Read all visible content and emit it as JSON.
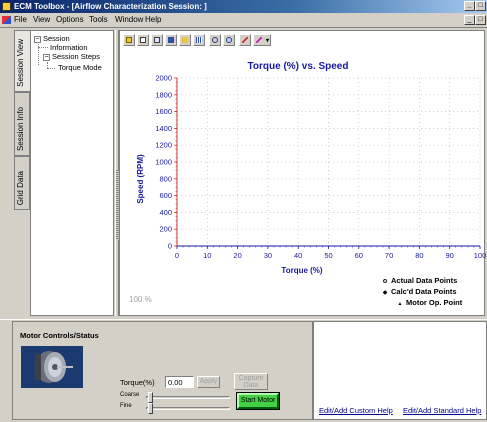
{
  "window": {
    "title": "ECM Toolbox - [Airflow Characterization Session: ]",
    "controls": [
      "_",
      "□",
      "×"
    ]
  },
  "menu": {
    "items": [
      "File",
      "View",
      "Options",
      "Tools",
      "Window",
      "Help"
    ]
  },
  "side_tabs": [
    "Session View",
    "Session Info",
    "Grid Data"
  ],
  "tree": {
    "root": "Session",
    "information": "Information",
    "steps": "Session Steps",
    "torque_mode": "Torque Mode"
  },
  "toolbar": {
    "icons": [
      "cursor-icon",
      "open-file-icon",
      "copy-icon",
      "save-icon",
      "chart-edit-icon",
      "grid-icon",
      "zoom-in-icon",
      "zoom-out-icon",
      "pen-icon",
      "chart-options-icon"
    ]
  },
  "zoom_label": "100 %",
  "chart_data": {
    "type": "scatter",
    "title": "Torque (%) vs. Speed",
    "xlabel": "Torque (%)",
    "ylabel": "Speed (RPM)",
    "xlim": [
      0,
      100
    ],
    "ylim": [
      0,
      2000
    ],
    "x_ticks": [
      "0",
      "10",
      "20",
      "30",
      "40",
      "50",
      "60",
      "70",
      "80",
      "90",
      "100"
    ],
    "y_ticks": [
      "0",
      "200",
      "400",
      "600",
      "800",
      "1000",
      "1200",
      "1400",
      "1600",
      "1800",
      "2000"
    ],
    "grid": true,
    "series": [],
    "legend": [
      {
        "symbol": "o",
        "label": "Actual Data Points"
      },
      {
        "symbol": "◆",
        "label": "Calc'd Data Points"
      },
      {
        "symbol": "▲",
        "label": "Motor Op. Point"
      }
    ],
    "legend_position": "bottom-right"
  },
  "motor": {
    "title": "Motor Controls/Status",
    "torque_label": "Torque(%)",
    "torque_value": "0.00",
    "apply_label": "Apply",
    "capture_label_1": "Capture",
    "capture_label_2": "Data",
    "coarse_label": "Coarse",
    "fine_label": "Fine",
    "start_label": "Start Motor"
  },
  "help": {
    "custom": "Edit/Add Custom Help",
    "standard": "Edit/Add Standard Help"
  },
  "colors": {
    "title_blue": "#1a1aa0",
    "axis_red": "#d03030",
    "start_green": "#44d044"
  }
}
